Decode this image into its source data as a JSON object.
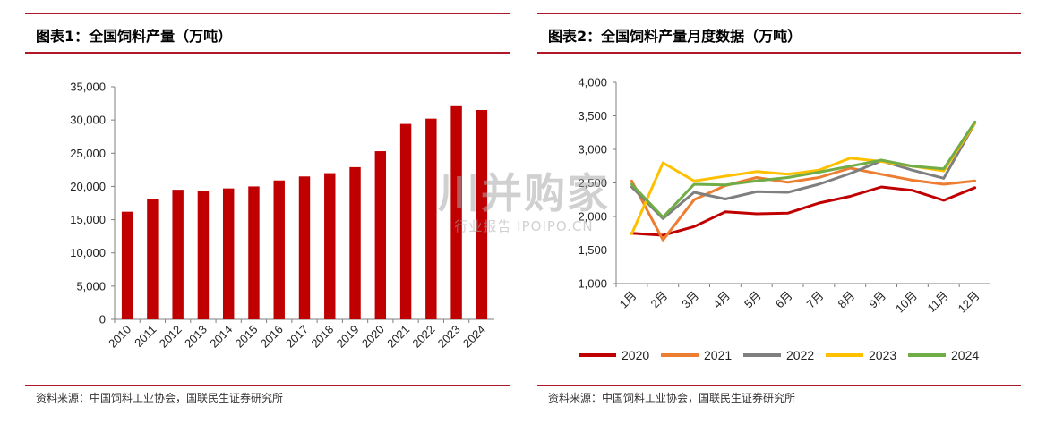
{
  "left_panel": {
    "title": "图表1：全国饲料产量（万吨）",
    "source": "资料来源：中国饲料工业协会，国联民生证券研究所"
  },
  "right_panel": {
    "title": "图表2：全国饲料产量月度数据（万吨）",
    "source": "资料来源：中国饲料工业协会，国联民生证券研究所"
  },
  "watermark": {
    "main": "川并购家",
    "sub": "行业报告 IPOIPO.CN"
  },
  "colors": {
    "rule": "#b0182a",
    "bar": "#c00000"
  },
  "chart_data": [
    {
      "type": "bar",
      "categories": [
        "2010",
        "2011",
        "2012",
        "2013",
        "2014",
        "2015",
        "2016",
        "2017",
        "2018",
        "2019",
        "2020",
        "2021",
        "2022",
        "2023",
        "2024"
      ],
      "values": [
        16200,
        18100,
        19500,
        19300,
        19700,
        20000,
        20900,
        21500,
        22000,
        22900,
        25300,
        29400,
        30200,
        32200,
        31500
      ],
      "ylim": [
        0,
        35000
      ],
      "yticks": [
        0,
        5000,
        10000,
        15000,
        20000,
        25000,
        30000,
        35000
      ],
      "ytick_labels": [
        "0",
        "5,000",
        "10,000",
        "15,000",
        "20,000",
        "25,000",
        "30,000",
        "35,000"
      ],
      "grid": false
    },
    {
      "type": "line",
      "categories": [
        "1月",
        "2月",
        "3月",
        "4月",
        "5月",
        "6月",
        "7月",
        "8月",
        "9月",
        "10月",
        "11月",
        "12月"
      ],
      "ylim": [
        1000,
        4000
      ],
      "yticks": [
        1000,
        1500,
        2000,
        2500,
        3000,
        3500,
        4000
      ],
      "ytick_labels": [
        "1,000",
        "1,500",
        "2,000",
        "2,500",
        "3,000",
        "3,500",
        "4,000"
      ],
      "grid": false,
      "legend": "bottom",
      "series": [
        {
          "name": "2020",
          "color": "#c00000",
          "values": [
            1750,
            1720,
            1850,
            2070,
            2040,
            2050,
            2200,
            2300,
            2440,
            2390,
            2240,
            2430
          ]
        },
        {
          "name": "2021",
          "color": "#ed7d31",
          "values": [
            2530,
            1650,
            2250,
            2460,
            2580,
            2510,
            2580,
            2720,
            2630,
            2540,
            2480,
            2530
          ]
        },
        {
          "name": "2022",
          "color": "#7f7f7f",
          "values": [
            2440,
            1970,
            2360,
            2260,
            2370,
            2360,
            2480,
            2640,
            2830,
            2690,
            2570,
            3390
          ]
        },
        {
          "name": "2023",
          "color": "#ffc000",
          "values": [
            1740,
            2800,
            2530,
            2600,
            2670,
            2630,
            2690,
            2870,
            2820,
            2750,
            2680,
            3390
          ]
        },
        {
          "name": "2024",
          "color": "#70ad47",
          "values": [
            2480,
            1990,
            2480,
            2470,
            2530,
            2580,
            2660,
            2750,
            2840,
            2750,
            2710,
            3410
          ]
        }
      ]
    }
  ]
}
